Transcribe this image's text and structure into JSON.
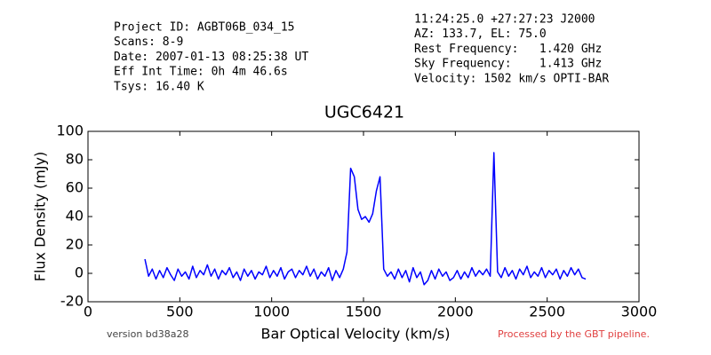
{
  "chart_data": {
    "type": "line",
    "title": "UGC6421",
    "x_label": "Bar Optical Velocity (km/s)",
    "y_label": "Flux Density (mJy)",
    "xlim": [
      0,
      3000
    ],
    "xticks": [
      0,
      500,
      1000,
      1500,
      2000,
      2500,
      3000
    ],
    "ylim": [
      -20,
      100
    ],
    "yticks": [
      -20,
      0,
      20,
      40,
      60,
      80,
      100
    ],
    "grid": false,
    "x": [
      310,
      330,
      350,
      370,
      390,
      410,
      430,
      450,
      470,
      490,
      510,
      530,
      550,
      570,
      590,
      610,
      630,
      650,
      670,
      690,
      710,
      730,
      750,
      770,
      790,
      810,
      830,
      850,
      870,
      890,
      910,
      930,
      950,
      970,
      990,
      1010,
      1030,
      1050,
      1070,
      1090,
      1110,
      1130,
      1150,
      1170,
      1190,
      1210,
      1230,
      1250,
      1270,
      1290,
      1310,
      1330,
      1350,
      1370,
      1390,
      1410,
      1430,
      1450,
      1470,
      1490,
      1510,
      1530,
      1550,
      1570,
      1590,
      1610,
      1630,
      1650,
      1670,
      1690,
      1710,
      1730,
      1750,
      1770,
      1790,
      1810,
      1830,
      1850,
      1870,
      1890,
      1910,
      1930,
      1950,
      1970,
      1990,
      2010,
      2030,
      2050,
      2070,
      2090,
      2110,
      2130,
      2150,
      2170,
      2190,
      2210,
      2230,
      2250,
      2270,
      2290,
      2310,
      2330,
      2350,
      2370,
      2390,
      2410,
      2430,
      2450,
      2470,
      2490,
      2510,
      2530,
      2550,
      2570,
      2590,
      2610,
      2630,
      2650,
      2670,
      2690,
      2710
    ],
    "series": [
      {
        "color": "#0000ff",
        "values": [
          10,
          -2,
          3,
          -4,
          2,
          -3,
          4,
          -1,
          -5,
          3,
          -2,
          1,
          -4,
          5,
          -3,
          2,
          -1,
          6,
          -2,
          3,
          -4,
          2,
          -1,
          4,
          -3,
          1,
          -5,
          3,
          -2,
          2,
          -4,
          1,
          -1,
          5,
          -3,
          2,
          -2,
          4,
          -4,
          1,
          3,
          -3,
          2,
          -1,
          5,
          -2,
          3,
          -4,
          1,
          -2,
          4,
          -5,
          2,
          -3,
          3,
          15,
          74,
          68,
          45,
          38,
          40,
          36,
          42,
          58,
          68,
          3,
          -2,
          1,
          -4,
          3,
          -3,
          2,
          -6,
          4,
          -3,
          1,
          -8,
          -5,
          2,
          -4,
          3,
          -2,
          1,
          -5,
          -3,
          2,
          -4,
          1,
          -3,
          4,
          -2,
          2,
          -1,
          3,
          -2,
          85,
          1,
          -3,
          4,
          -2,
          2,
          -4,
          3,
          -1,
          5,
          -3,
          1,
          -2,
          4,
          -3,
          2,
          -1,
          3,
          -4,
          2,
          -2,
          4,
          -1,
          3,
          -3,
          -4
        ]
      }
    ]
  },
  "header_left": [
    "Project ID: AGBT06B_034_15",
    "Scans: 8-9",
    "Date: 2007-01-13 08:25:38 UT",
    "Eff Int Time: 0h 4m 46.6s",
    "Tsys: 16.40 K"
  ],
  "header_right": [
    "11:24:25.0 +27:27:23 J2000",
    "AZ: 133.7, EL: 75.0",
    "Rest Frequency:   1.420 GHz",
    "Sky Frequency:    1.413 GHz",
    "Velocity: 1502 km/s OPTI-BAR"
  ],
  "footer": {
    "version": "version bd38a28",
    "pipeline": "Processed by the GBT pipeline."
  }
}
